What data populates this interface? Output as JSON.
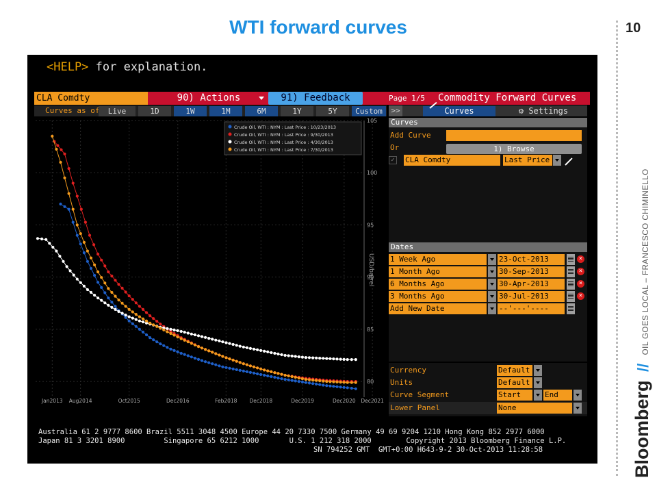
{
  "slide": {
    "title": "WTI forward curves",
    "number": "10",
    "brand": "Bloomberg",
    "slashes": "//",
    "tagline": "OIL GOES LOCAL – FRANCESCO CHIMINELLO"
  },
  "terminal": {
    "help_key": "<HELP>",
    "help_text": " for explanation.",
    "ticker": "CLA Comdty",
    "actions_label": "90) Actions",
    "feedback_label": "91) Feedback",
    "page_info": "Page 1/5",
    "title": "Commodity Forward Curves",
    "curves_as_of_label": "Curves as of",
    "tabs": [
      "Live",
      "1D",
      "1W",
      "1M",
      "6M",
      "1Y",
      "5Y",
      "Custom"
    ],
    "right_tabs": {
      "arrow": ">>",
      "curves": "Curves",
      "settings": "Settings"
    }
  },
  "curves_panel": {
    "header": "Curves",
    "add_curve_label": "Add Curve",
    "or_label": "Or",
    "browse_label": "1) Browse",
    "curve_ticker": "CLA Comdty",
    "curve_field": "Last Price"
  },
  "dates_panel": {
    "header": "Dates",
    "rows": [
      {
        "label": "1 Week Ago",
        "date": "23-Oct-2013",
        "color": "#1e5fc8"
      },
      {
        "label": "1 Month Ago",
        "date": "30-Sep-2013",
        "color": "#e02020"
      },
      {
        "label": "6 Months Ago",
        "date": "30-Apr-2013",
        "color": "#ffffff"
      },
      {
        "label": "3 Months Ago",
        "date": "30-Jul-2013",
        "color": "#f39a1d"
      }
    ],
    "add_new_label": "Add New Date",
    "add_new_value": "--'---'----"
  },
  "settings_panel": {
    "rows": [
      {
        "label": "Currency",
        "value": "Default"
      },
      {
        "label": "Units",
        "value": "Default"
      },
      {
        "label": "Curve Segment",
        "value": "Start",
        "value2": "End"
      },
      {
        "label": "Lower Panel",
        "value": "None"
      }
    ]
  },
  "footer": {
    "line1": "Australia 61 2 9777 8600 Brazil 5511 3048 4500 Europe 44 20 7330 7500 Germany 49 69 9204 1210 Hong Kong 852 2977 6000",
    "line2": "Japan 81 3 3201 8900         Singapore 65 6212 1000       U.S. 1 212 318 2000        Copyright 2013 Bloomberg Finance L.P.",
    "line3": "SN 794252 GMT  GMT+0:00 H643-9-2 30-Oct-2013 11:28:58"
  },
  "chart_data": {
    "type": "line",
    "ylabel": "USD/barrel",
    "ylim": [
      78.5,
      105
    ],
    "yticks": [
      80,
      85,
      90,
      95,
      100,
      105
    ],
    "xlim": [
      2013.5,
      2021.4
    ],
    "xticks": [
      {
        "x": 2013.9,
        "label": "Jan2013"
      },
      {
        "x": 2014.58,
        "label": "Aug2014"
      },
      {
        "x": 2015.75,
        "label": "Oct2015"
      },
      {
        "x": 2016.92,
        "label": "Dec2016"
      },
      {
        "x": 2018.08,
        "label": "Feb2018"
      },
      {
        "x": 2018.92,
        "label": "Dec2018"
      },
      {
        "x": 2019.92,
        "label": "Dec2019"
      },
      {
        "x": 2020.92,
        "label": "Dec2020"
      },
      {
        "x": 2021.6,
        "label": "Dec2021"
      }
    ],
    "legend_position": "top-right",
    "series": [
      {
        "name": "Crude Oil, WTI : NYM : Last Price : 10/23/2013",
        "color": "#1e5fc8",
        "points": [
          [
            2014.1,
            97
          ],
          [
            2014.3,
            96.5
          ],
          [
            2014.5,
            94
          ],
          [
            2014.75,
            91.5
          ],
          [
            2015.0,
            89.5
          ],
          [
            2015.25,
            88
          ],
          [
            2015.5,
            86.8
          ],
          [
            2015.75,
            85.8
          ],
          [
            2016.0,
            85
          ],
          [
            2016.25,
            84.2
          ],
          [
            2016.5,
            83.6
          ],
          [
            2016.75,
            83.1
          ],
          [
            2017.0,
            82.7
          ],
          [
            2017.5,
            82
          ],
          [
            2018.0,
            81.4
          ],
          [
            2018.5,
            81
          ],
          [
            2019.0,
            80.6
          ],
          [
            2019.5,
            80.2
          ],
          [
            2020.0,
            79.9
          ],
          [
            2020.5,
            79.6
          ],
          [
            2021.0,
            79.4
          ],
          [
            2021.2,
            79.3
          ]
        ]
      },
      {
        "name": "Crude Oil, WTI : NYM : Last Price : 9/30/2013",
        "color": "#e02020",
        "points": [
          [
            2013.95,
            103
          ],
          [
            2014.2,
            101.8
          ],
          [
            2014.4,
            99
          ],
          [
            2014.6,
            96.5
          ],
          [
            2014.8,
            94
          ],
          [
            2015.0,
            92.2
          ],
          [
            2015.25,
            90.5
          ],
          [
            2015.5,
            89.3
          ],
          [
            2015.75,
            88.2
          ],
          [
            2016.0,
            87.2
          ],
          [
            2016.25,
            86.3
          ],
          [
            2016.5,
            85.5
          ],
          [
            2016.75,
            84.8
          ],
          [
            2017.0,
            84.2
          ],
          [
            2017.5,
            83.2
          ],
          [
            2018.0,
            82.4
          ],
          [
            2018.5,
            81.7
          ],
          [
            2019.0,
            81.1
          ],
          [
            2019.5,
            80.6
          ],
          [
            2020.0,
            80.3
          ],
          [
            2020.5,
            80.1
          ],
          [
            2021.0,
            80.0
          ],
          [
            2021.2,
            80.0
          ]
        ]
      },
      {
        "name": "Crude Oil, WTI : NYM : Last Price : 4/30/2013",
        "color": "#ffffff",
        "points": [
          [
            2013.55,
            93.7
          ],
          [
            2013.75,
            93.6
          ],
          [
            2014.0,
            92.5
          ],
          [
            2014.25,
            91
          ],
          [
            2014.5,
            89.8
          ],
          [
            2014.75,
            88.8
          ],
          [
            2015.0,
            88
          ],
          [
            2015.25,
            87.3
          ],
          [
            2015.5,
            86.7
          ],
          [
            2015.75,
            86.2
          ],
          [
            2016.0,
            85.8
          ],
          [
            2016.5,
            85.2
          ],
          [
            2017.0,
            84.8
          ],
          [
            2017.5,
            84.3
          ],
          [
            2018.0,
            83.8
          ],
          [
            2018.5,
            83.3
          ],
          [
            2019.0,
            82.9
          ],
          [
            2019.5,
            82.5
          ],
          [
            2020.0,
            82.3
          ],
          [
            2020.5,
            82.2
          ],
          [
            2021.0,
            82.1
          ],
          [
            2021.2,
            82.1
          ]
        ]
      },
      {
        "name": "Crude Oil, WTI : NYM : Last Price : 7/30/2013",
        "color": "#f39a1d",
        "points": [
          [
            2013.9,
            103.5
          ],
          [
            2014.1,
            101
          ],
          [
            2014.3,
            98
          ],
          [
            2014.5,
            95
          ],
          [
            2014.75,
            92.5
          ],
          [
            2015.0,
            90.5
          ],
          [
            2015.25,
            88.9
          ],
          [
            2015.5,
            87.8
          ],
          [
            2015.75,
            86.9
          ],
          [
            2016.0,
            86.2
          ],
          [
            2016.25,
            85.6
          ],
          [
            2016.5,
            85.1
          ],
          [
            2016.75,
            84.6
          ],
          [
            2017.0,
            84.1
          ],
          [
            2017.5,
            83.2
          ],
          [
            2018.0,
            82.4
          ],
          [
            2018.5,
            81.7
          ],
          [
            2019.0,
            81.1
          ],
          [
            2019.5,
            80.6
          ],
          [
            2020.0,
            80.2
          ],
          [
            2020.5,
            80.0
          ],
          [
            2021.0,
            79.9
          ],
          [
            2021.2,
            79.9
          ]
        ]
      }
    ]
  }
}
